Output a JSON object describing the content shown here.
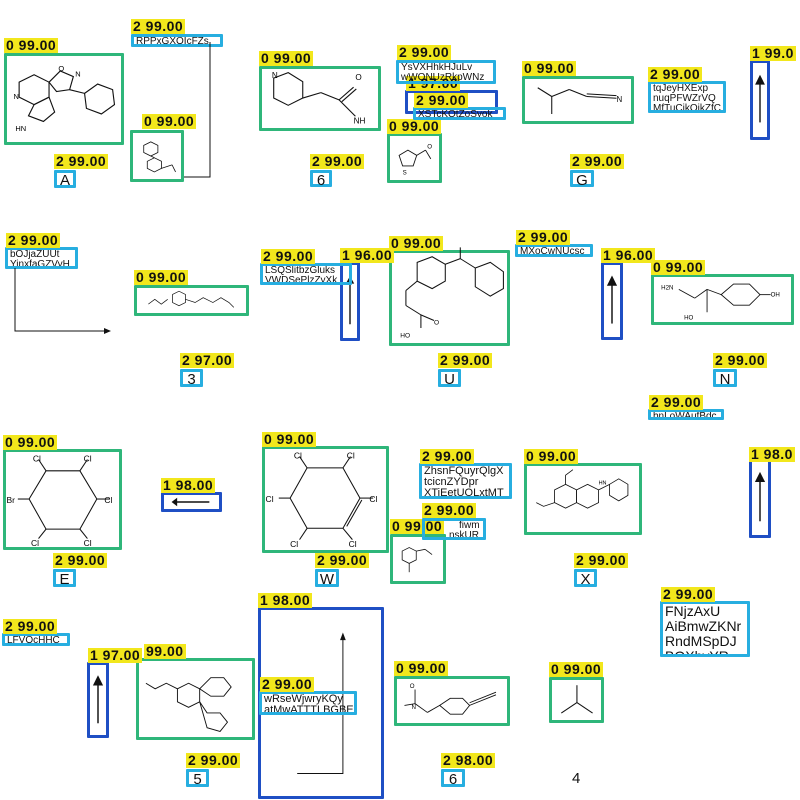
{
  "colors": {
    "molecule": "#2fb67a",
    "identifier": "#27aee0",
    "arrow": "#1f4fc4",
    "score": "#f2e71c"
  },
  "scores": {
    "s01": "0 99.00",
    "s02": "2 99.00",
    "s03": "0 99.00",
    "s04": "0 99.00",
    "s05": "2 99.00",
    "s06": "1 97.00",
    "s07": "2 99.00",
    "s08": "0 99.00",
    "s09": "0 99.00",
    "s10": "2 99.00",
    "s11": "1 99.0",
    "s12": "2 99.00",
    "s13": "2 99.00",
    "s14": "2 99.00",
    "s15": "2 99.00",
    "s16": "0 99.00",
    "s17": "2 99.00",
    "s18": "1 96.00",
    "s19": "0 99.00",
    "s20": "2 99.00",
    "s21": "1 96.00",
    "s22": "0 99.00",
    "s23": "2 97.00",
    "s24": "2 99.00",
    "s25": "2 99.00",
    "s26": "2 99.00",
    "s27": "0 99.00",
    "s28": "1 98.00",
    "s29": "0 99.00",
    "s30": "2 99.00",
    "s31": "2 99.00",
    "s32": "0 99.00",
    "s33": "0 99.00",
    "s34": "1 98.0",
    "s35": "2 99.00",
    "s36": "2 99.00",
    "s37": "2 99.00",
    "s38": "2 99.00",
    "s39": "2 99.00",
    "s40": "1 97.00",
    "s41": "99.00",
    "s42": "1 98.00",
    "s43": "2 99.00",
    "s44": "0 99.00",
    "s45": "0 99.00",
    "s46": "2 99.00",
    "s47": "2 98.00"
  },
  "labels": {
    "A": "A",
    "six_top": "6",
    "G": "G",
    "three": "3",
    "U": "U",
    "N": "N",
    "E": "E",
    "W": "W",
    "X": "X",
    "five": "5",
    "six_bottom": "6",
    "four": "4"
  },
  "identifiers": {
    "t1": "RPPxGXOIcFZs",
    "t2a": "YsVXHhkHJuLv",
    "t2b": "wWQNUzRkpWNz",
    "t3": "XSTcKQtZoSyok",
    "t4a": "tqJeyHXExp",
    "t4b": "nuqPFWZrVQ",
    "t4c": "MfTuCikQjkZfC",
    "t5a": "bOJjaZUUt",
    "t5b": "YinxfaGZVyH",
    "t6a": "LSQSlitbzGluks",
    "t6b": "VWDSePlzZyXk",
    "t7": "MXoCwNUcsc",
    "t8": "bnLoWAufBdc",
    "t9a": "ZhsnFQuyrQlgX",
    "t9b": "tcicnZYDpr",
    "t9c": "XTiEetUOLxtMT",
    "t10a": "fiwm",
    "t10b": "nskUR",
    "t11": "LFVOcHHC",
    "t12a": "FNjzAxU",
    "t12b": "AiBmwZKNr",
    "t12c": "RndMSpDJ",
    "t12d": "BOXbyYR",
    "t13a": "wRseWjwryKQy",
    "t13b": "atMwATTTLBGBE"
  },
  "atoms": {
    "O": "O",
    "N": "N",
    "NH": "NH",
    "HN": "HN",
    "HO": "HO",
    "OH": "OH",
    "H2N": "H2N",
    "Cl": "Cl",
    "Br": "Br",
    "S": "S",
    "HNs": "HN",
    "NHs": "NH"
  }
}
